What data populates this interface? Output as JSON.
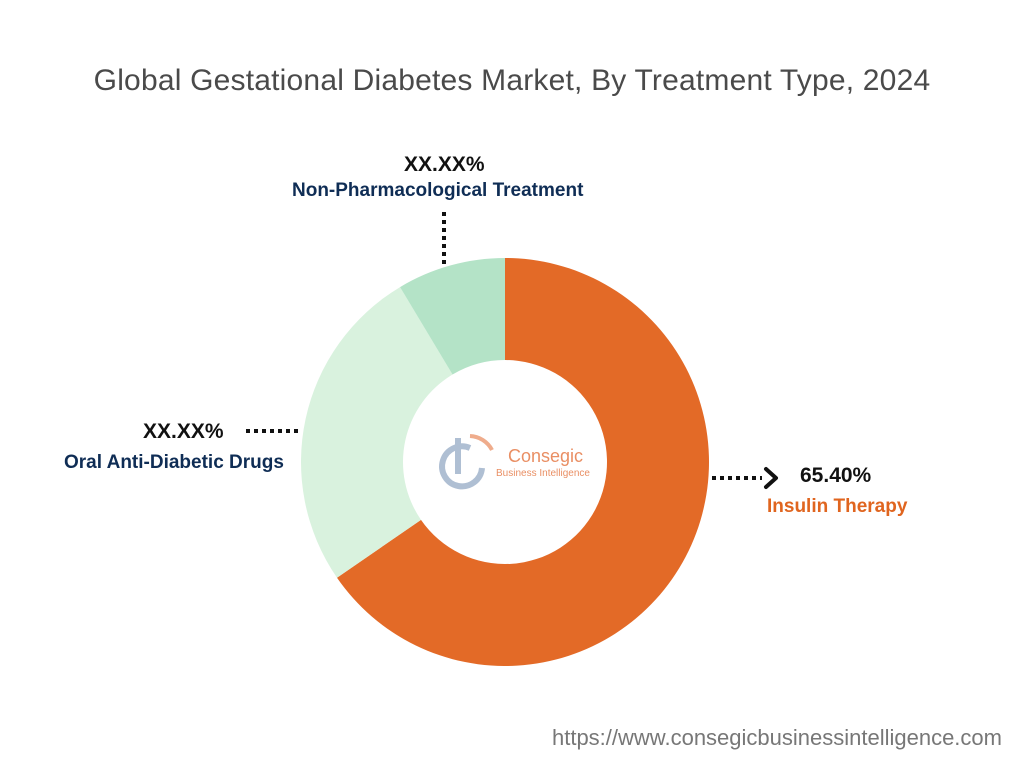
{
  "title": "Global Gestational Diabetes Market, By Treatment Type, 2024",
  "footer_url": "https://www.consegicbusinessintelligence.com",
  "logo": {
    "brand": "Consegic",
    "tagline": "Business Intelligence",
    "icon": "consegic-logo-icon",
    "brand_color": "#e2692f",
    "tagline_color": "#e2692f"
  },
  "chart_data": {
    "type": "pie",
    "donut": true,
    "title": "Global Gestational Diabetes Market, By Treatment Type, 2024",
    "legend": "none",
    "slices": [
      {
        "name": "Insulin Therapy",
        "label": "65.40%",
        "value": 65.4,
        "color": "#e36a27",
        "label_color": "#e0651f"
      },
      {
        "name": "Oral Anti-Diabetic Drugs",
        "label": "XX.XX%",
        "value": 26.0,
        "color": "#d9f2de",
        "label_color": "#0f2d55"
      },
      {
        "name": "Non-Pharmacological Treatment",
        "label": "XX.XX%",
        "value": 8.6,
        "color": "#b4e3c7",
        "label_color": "#0f2d55"
      }
    ]
  }
}
